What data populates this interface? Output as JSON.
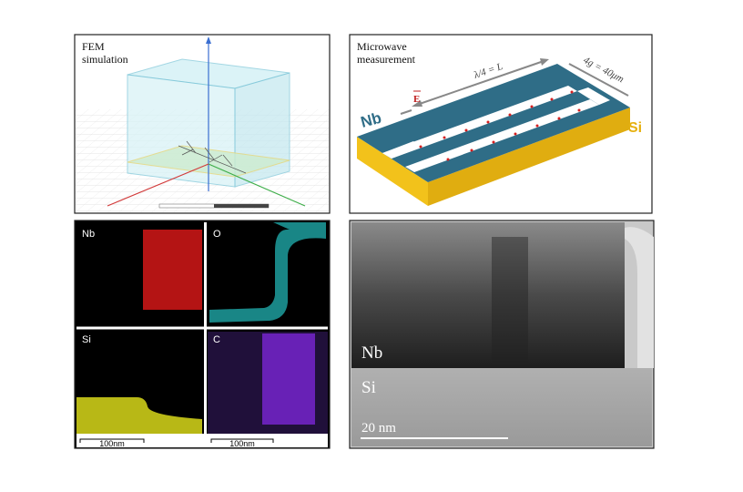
{
  "panels": {
    "fem": {
      "label": "FEM simulation"
    },
    "microwave": {
      "label": "Microwave measurement",
      "length_label": "λ/4 = L",
      "gap_label": "4g = 40μm",
      "field_label": "E",
      "metal_label": "Nb",
      "substrate_label": "Si"
    },
    "eds": {
      "maps": [
        {
          "label": "Nb"
        },
        {
          "label": "O"
        },
        {
          "label": "Si"
        },
        {
          "label": "C"
        }
      ],
      "scale_labels": [
        "100nm",
        "100nm"
      ]
    },
    "tem": {
      "metal_label": "Nb",
      "substrate_label": "Si",
      "scale_label": "20 nm"
    }
  }
}
